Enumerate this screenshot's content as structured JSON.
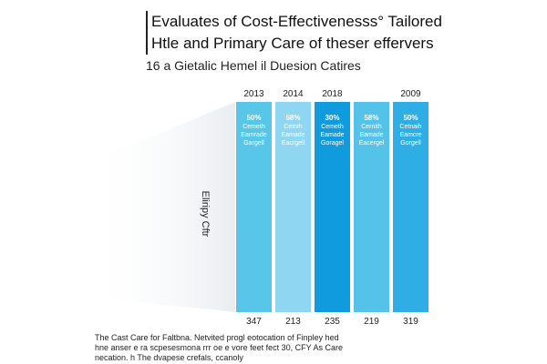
{
  "header": {
    "title_lines": [
      "Evaluates of Cost-Effectivenesss° Tailored",
      "Htle and Primary Care of theser effervers"
    ],
    "subtitle": "16 a Gietalic Hemel il Duesion Catires"
  },
  "chart_data": {
    "type": "bar",
    "categories": [
      "2013",
      "2014",
      "2018",
      "",
      "2009"
    ],
    "values": [
      347,
      213,
      235,
      219,
      319
    ],
    "bar_labels": [
      [
        "50%",
        "Cemeth",
        "Eamrade",
        "Gargell"
      ],
      [
        "58%",
        "Cetnih",
        "Eamade",
        "Eacrgell"
      ],
      [
        "30%",
        "Cemeth",
        "Eamade",
        "Goragel"
      ],
      [
        "58%",
        "Cernith",
        "Eamade",
        "Eacergel"
      ],
      [
        "50%",
        "Cetnaih",
        "Eamcre",
        "Gorgell"
      ]
    ],
    "value_labels": [
      "347",
      "213",
      "235",
      "219",
      "319"
    ],
    "colors": [
      "#57c6e8",
      "#8fd6f2",
      "#0f9bdd",
      "#55c2ea",
      "#2faee5"
    ],
    "ylabel": "Eliripy Cftr",
    "xlabel": "",
    "title": "",
    "grid": false,
    "legend": "none"
  },
  "caption": {
    "lines": [
      "The Cast Care for Faltbna. Netvited progl eotocation of Finpley hed",
      "hne anser e ra scpesesmona rrr oe e vore feet fect 30, CFY As Care",
      "necation. h The dvapese crefals, ccanoly"
    ]
  }
}
